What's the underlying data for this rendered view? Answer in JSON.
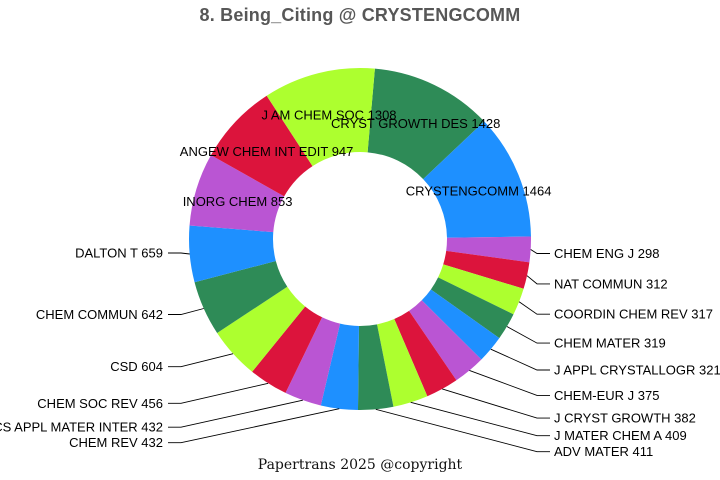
{
  "title": "8. Being_Citing @ CRYSTENGCOMM",
  "footer": "Papertrans 2025 @copyright",
  "title_color": "#575757",
  "text_color": "#000000",
  "background_color": "#ffffff",
  "chart_data": {
    "type": "pie",
    "subtype": "donut",
    "title": "8. Being_Citing @ CRYSTENGCOMM",
    "legend_position": "none",
    "grid": false,
    "start_angle_deg_clockwise_from_top": 5,
    "direction": "clockwise",
    "total": 12369,
    "palette": [
      "#2E8B57",
      "#1E90FF",
      "#BA55D3",
      "#DC143C",
      "#ADFF2F"
    ],
    "label_format": "NAME VALUE",
    "slices": [
      {
        "label": "CRYST GROWTH DES",
        "value": 1428,
        "color": "#2E8B57"
      },
      {
        "label": "CRYSTENGCOMM",
        "value": 1464,
        "color": "#1E90FF"
      },
      {
        "label": "CHEM ENG J",
        "value": 298,
        "color": "#BA55D3"
      },
      {
        "label": "NAT COMMUN",
        "value": 312,
        "color": "#DC143C"
      },
      {
        "label": "COORDIN CHEM REV",
        "value": 317,
        "color": "#ADFF2F"
      },
      {
        "label": "CHEM MATER",
        "value": 319,
        "color": "#2E8B57"
      },
      {
        "label": "J APPL CRYSTALLOGR",
        "value": 321,
        "color": "#1E90FF"
      },
      {
        "label": "CHEM-EUR J",
        "value": 375,
        "color": "#BA55D3"
      },
      {
        "label": "J CRYST GROWTH",
        "value": 382,
        "color": "#DC143C"
      },
      {
        "label": "J MATER CHEM A",
        "value": 409,
        "color": "#ADFF2F"
      },
      {
        "label": "ADV MATER",
        "value": 411,
        "color": "#2E8B57"
      },
      {
        "label": "CHEM REV",
        "value": 432,
        "color": "#1E90FF"
      },
      {
        "label": "ACS APPL MATER INTER",
        "value": 432,
        "color": "#BA55D3"
      },
      {
        "label": "CHEM SOC REV",
        "value": 456,
        "color": "#DC143C"
      },
      {
        "label": "CSD",
        "value": 604,
        "color": "#ADFF2F"
      },
      {
        "label": "CHEM COMMUN",
        "value": 642,
        "color": "#2E8B57"
      },
      {
        "label": "DALTON T",
        "value": 659,
        "color": "#1E90FF"
      },
      {
        "label": "INORG CHEM",
        "value": 853,
        "color": "#BA55D3"
      },
      {
        "label": "ANGEW CHEM INT EDIT",
        "value": 947,
        "color": "#DC143C"
      },
      {
        "label": "J AM CHEM SOC",
        "value": 1308,
        "color": "#ADFF2F"
      }
    ]
  }
}
